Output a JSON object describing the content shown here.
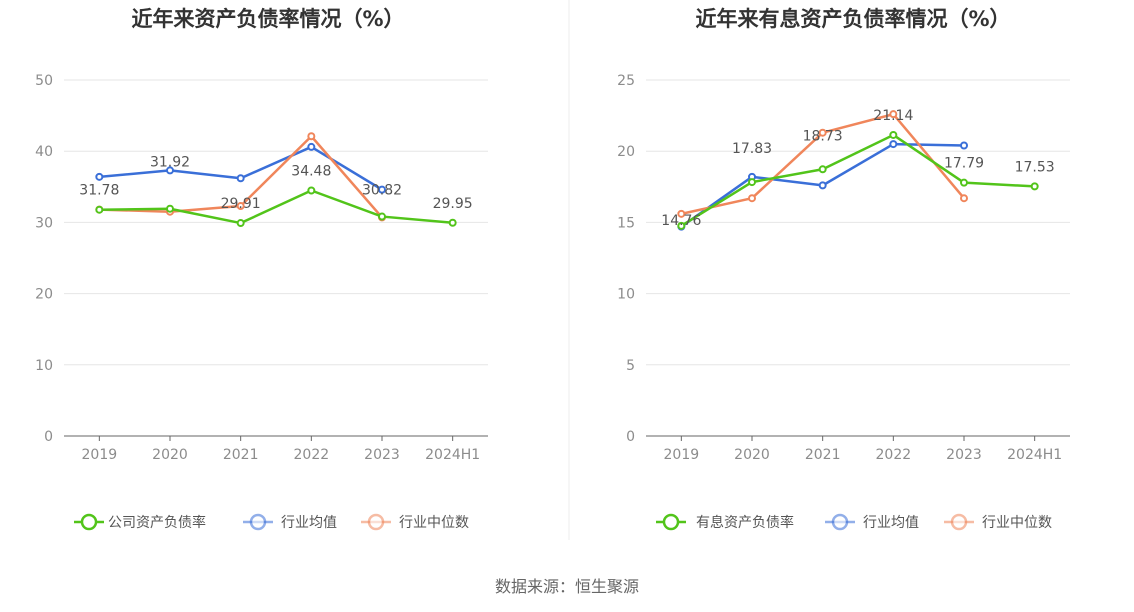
{
  "source": "数据来源：恒生聚源",
  "colors": {
    "green": "#52c41a",
    "blue": "#3a6fd8",
    "orange": "#f0865b",
    "grid": "#e6e6e6",
    "axis": "#666666"
  },
  "chart_data": [
    {
      "type": "line",
      "title": "近年来资产负债率情况（%）",
      "categories": [
        "2019",
        "2020",
        "2021",
        "2022",
        "2023",
        "2024H1"
      ],
      "ylim": [
        0,
        50
      ],
      "yticks": [
        "0",
        "10",
        "20",
        "30",
        "40",
        "50"
      ],
      "legend_position": "bottom",
      "series": [
        {
          "name": "公司资产负债率",
          "color": "#52c41a",
          "values": [
            31.78,
            31.92,
            29.91,
            34.48,
            30.82,
            29.95
          ],
          "labels": [
            "31.78",
            "31.92",
            "29.91",
            "34.48",
            "30.82",
            "29.95"
          ]
        },
        {
          "name": "行业均值",
          "color": "#3a6fd8",
          "values": [
            36.4,
            37.3,
            36.2,
            40.6,
            34.6,
            null
          ]
        },
        {
          "name": "行业中位数",
          "color": "#f0865b",
          "values": [
            31.8,
            31.5,
            32.3,
            42.1,
            30.7,
            null
          ]
        }
      ]
    },
    {
      "type": "line",
      "title": "近年来有息资产负债率情况（%）",
      "categories": [
        "2019",
        "2020",
        "2021",
        "2022",
        "2023",
        "2024H1"
      ],
      "ylim": [
        0,
        25
      ],
      "yticks": [
        "0",
        "5",
        "10",
        "15",
        "20",
        "25"
      ],
      "legend_position": "bottom",
      "series": [
        {
          "name": "有息资产负债率",
          "color": "#52c41a",
          "values": [
            14.76,
            17.83,
            18.73,
            21.14,
            17.79,
            17.53
          ],
          "labels": [
            "14.76",
            "17.83",
            "18.73",
            "21.14",
            "17.79",
            "17.53"
          ]
        },
        {
          "name": "行业均值",
          "color": "#3a6fd8",
          "values": [
            14.7,
            18.2,
            17.6,
            20.5,
            20.4,
            null
          ]
        },
        {
          "name": "行业中位数",
          "color": "#f0865b",
          "values": [
            15.6,
            16.7,
            21.3,
            22.6,
            16.7,
            null
          ]
        }
      ]
    }
  ]
}
